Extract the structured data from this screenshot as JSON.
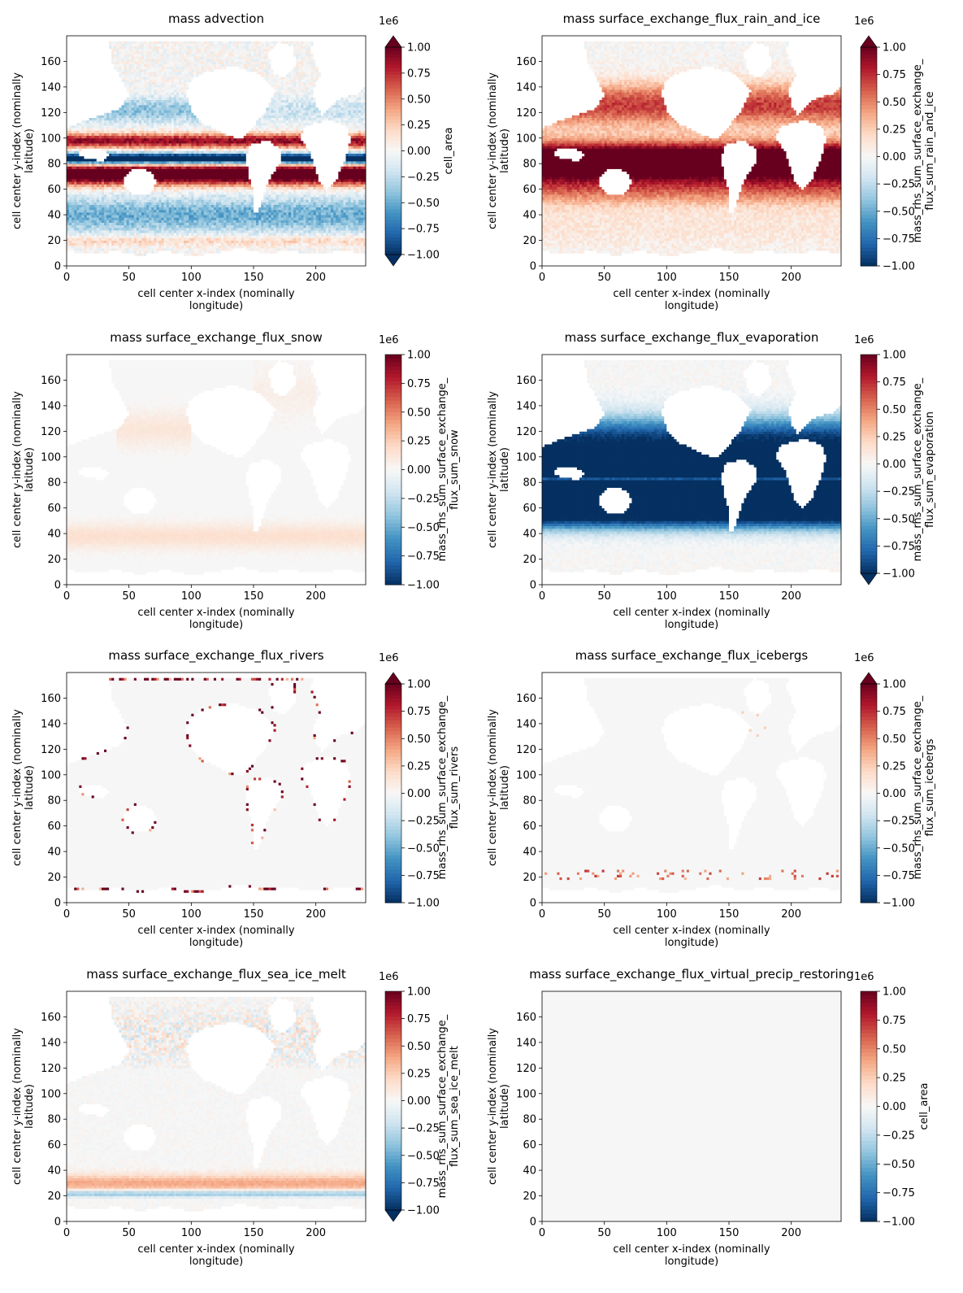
{
  "figure": {
    "xlabel": "cell center x-index (nominally\nlongitude)",
    "ylabel": "cell center y-index (nominally\nlatitude)",
    "colorbar_multiplier": "1e6",
    "colormap": [
      "#053061",
      "#2166ac",
      "#4393c3",
      "#92c5de",
      "#d1e5f0",
      "#f7f7f7",
      "#fddbc7",
      "#f4a582",
      "#d6604d",
      "#b2182b",
      "#67001f"
    ],
    "land_color": "#ffffff",
    "background_value_color": "#f6f6f6"
  },
  "chart_data": [
    {
      "type": "heatmap",
      "title": "mass advection",
      "xlabel": "cell center x-index (nominally\nlongitude)",
      "ylabel": "cell center y-index (nominally\nlatitude)",
      "xlim": [
        0,
        240
      ],
      "ylim": [
        0,
        180
      ],
      "xticks": [
        0,
        50,
        100,
        150,
        200
      ],
      "yticks": [
        0,
        20,
        40,
        60,
        80,
        100,
        120,
        140,
        160
      ],
      "colorbar": {
        "label": "cell_area",
        "vmin": -1.0,
        "vmax": 1.0,
        "ticks": [
          1.0,
          0.75,
          0.5,
          0.25,
          0.0,
          -0.25,
          -0.5,
          -0.75,
          -1.0
        ],
        "tick_labels": [
          "1.00",
          "0.75",
          "0.50",
          "0.25",
          "0.00",
          "−0.25",
          "−0.50",
          "−0.75",
          "−1.00"
        ],
        "extend": "both"
      },
      "pattern": "advection"
    },
    {
      "type": "heatmap",
      "title": "mass surface_exchange_flux_rain_and_ice",
      "xlabel": "cell center x-index (nominally\nlongitude)",
      "ylabel": "cell center y-index (nominally\nlatitude)",
      "xlim": [
        0,
        240
      ],
      "ylim": [
        0,
        180
      ],
      "xticks": [
        0,
        50,
        100,
        150,
        200
      ],
      "yticks": [
        0,
        20,
        40,
        60,
        80,
        100,
        120,
        140,
        160
      ],
      "colorbar": {
        "label": "mass_rhs_sum_surface_exchange_\nflux_sum_rain_and_ice",
        "vmin": -1.0,
        "vmax": 1.0,
        "ticks": [
          1.0,
          0.75,
          0.5,
          0.25,
          0.0,
          -0.25,
          -0.5,
          -0.75,
          -1.0
        ],
        "tick_labels": [
          "1.00",
          "0.75",
          "0.50",
          "0.25",
          "0.00",
          "−0.25",
          "−0.50",
          "−0.75",
          "−1.00"
        ],
        "extend": "max"
      },
      "pattern": "rain"
    },
    {
      "type": "heatmap",
      "title": "mass surface_exchange_flux_snow",
      "xlabel": "cell center x-index (nominally\nlongitude)",
      "ylabel": "cell center y-index (nominally\nlatitude)",
      "xlim": [
        0,
        240
      ],
      "ylim": [
        0,
        180
      ],
      "xticks": [
        0,
        50,
        100,
        150,
        200
      ],
      "yticks": [
        0,
        20,
        40,
        60,
        80,
        100,
        120,
        140,
        160
      ],
      "colorbar": {
        "label": "mass_rhs_sum_surface_exchange_\nflux_sum_snow",
        "vmin": -1.0,
        "vmax": 1.0,
        "ticks": [
          1.0,
          0.75,
          0.5,
          0.25,
          0.0,
          -0.25,
          -0.5,
          -0.75,
          -1.0
        ],
        "tick_labels": [
          "1.00",
          "0.75",
          "0.50",
          "0.25",
          "0.00",
          "−0.25",
          "−0.50",
          "−0.75",
          "−1.00"
        ],
        "extend": "neither"
      },
      "pattern": "snow"
    },
    {
      "type": "heatmap",
      "title": "mass surface_exchange_flux_evaporation",
      "xlabel": "cell center x-index (nominally\nlongitude)",
      "ylabel": "cell center y-index (nominally\nlatitude)",
      "xlim": [
        0,
        240
      ],
      "ylim": [
        0,
        180
      ],
      "xticks": [
        0,
        50,
        100,
        150,
        200
      ],
      "yticks": [
        0,
        20,
        40,
        60,
        80,
        100,
        120,
        140,
        160
      ],
      "colorbar": {
        "label": "mass_rhs_sum_surface_exchange_\nflux_sum_evaporation",
        "vmin": -1.0,
        "vmax": 1.0,
        "ticks": [
          1.0,
          0.75,
          0.5,
          0.25,
          0.0,
          -0.25,
          -0.5,
          -0.75,
          -1.0
        ],
        "tick_labels": [
          "1.00",
          "0.75",
          "0.50",
          "0.25",
          "0.00",
          "−0.25",
          "−0.50",
          "−0.75",
          "−1.00"
        ],
        "extend": "min"
      },
      "pattern": "evaporation"
    },
    {
      "type": "heatmap",
      "title": "mass surface_exchange_flux_rivers",
      "xlabel": "cell center x-index (nominally\nlongitude)",
      "ylabel": "cell center y-index (nominally\nlatitude)",
      "xlim": [
        0,
        240
      ],
      "ylim": [
        0,
        180
      ],
      "xticks": [
        0,
        50,
        100,
        150,
        200
      ],
      "yticks": [
        0,
        20,
        40,
        60,
        80,
        100,
        120,
        140,
        160
      ],
      "colorbar": {
        "label": "mass_rhs_sum_surface_exchange_\nflux_sum_rivers",
        "vmin": -1.0,
        "vmax": 1.0,
        "ticks": [
          1.0,
          0.75,
          0.5,
          0.25,
          0.0,
          -0.25,
          -0.5,
          -0.75,
          -1.0
        ],
        "tick_labels": [
          "1.00",
          "0.75",
          "0.50",
          "0.25",
          "0.00",
          "−0.25",
          "−0.50",
          "−0.75",
          "−1.00"
        ],
        "extend": "max"
      },
      "pattern": "rivers"
    },
    {
      "type": "heatmap",
      "title": "mass surface_exchange_flux_icebergs",
      "xlabel": "cell center x-index (nominally\nlongitude)",
      "ylabel": "cell center y-index (nominally\nlatitude)",
      "xlim": [
        0,
        240
      ],
      "ylim": [
        0,
        180
      ],
      "xticks": [
        0,
        50,
        100,
        150,
        200
      ],
      "yticks": [
        0,
        20,
        40,
        60,
        80,
        100,
        120,
        140,
        160
      ],
      "colorbar": {
        "label": "mass_rhs_sum_surface_exchange_\nflux_sum_icebergs",
        "vmin": -1.0,
        "vmax": 1.0,
        "ticks": [
          1.0,
          0.75,
          0.5,
          0.25,
          0.0,
          -0.25,
          -0.5,
          -0.75,
          -1.0
        ],
        "tick_labels": [
          "1.00",
          "0.75",
          "0.50",
          "0.25",
          "0.00",
          "−0.25",
          "−0.50",
          "−0.75",
          "−1.00"
        ],
        "extend": "max"
      },
      "pattern": "icebergs"
    },
    {
      "type": "heatmap",
      "title": "mass surface_exchange_flux_sea_ice_melt",
      "xlabel": "cell center x-index (nominally\nlongitude)",
      "ylabel": "cell center y-index (nominally\nlatitude)",
      "xlim": [
        0,
        240
      ],
      "ylim": [
        0,
        180
      ],
      "xticks": [
        0,
        50,
        100,
        150,
        200
      ],
      "yticks": [
        0,
        20,
        40,
        60,
        80,
        100,
        120,
        140,
        160
      ],
      "colorbar": {
        "label": "mass_rhs_sum_surface_exchange_\nflux_sum_sea_ice_melt",
        "vmin": -1.0,
        "vmax": 1.0,
        "ticks": [
          1.0,
          0.75,
          0.5,
          0.25,
          0.0,
          -0.25,
          -0.5,
          -0.75,
          -1.0
        ],
        "tick_labels": [
          "1.00",
          "0.75",
          "0.50",
          "0.25",
          "0.00",
          "−0.25",
          "−0.50",
          "−0.75",
          "−1.00"
        ],
        "extend": "min"
      },
      "pattern": "seaice"
    },
    {
      "type": "heatmap",
      "title": "mass surface_exchange_flux_virtual_precip_restoring",
      "xlabel": "cell center x-index (nominally\nlongitude)",
      "ylabel": "cell center y-index (nominally\nlatitude)",
      "xlim": [
        0,
        240
      ],
      "ylim": [
        0,
        180
      ],
      "xticks": [
        0,
        50,
        100,
        150,
        200
      ],
      "yticks": [
        0,
        20,
        40,
        60,
        80,
        100,
        120,
        140,
        160
      ],
      "colorbar": {
        "label": "cell_area",
        "vmin": -1.0,
        "vmax": 1.0,
        "ticks": [
          1.0,
          0.75,
          0.5,
          0.25,
          0.0,
          -0.25,
          -0.5,
          -0.75,
          -1.0
        ],
        "tick_labels": [
          "1.00",
          "0.75",
          "0.50",
          "0.25",
          "0.00",
          "−0.25",
          "−0.50",
          "−0.75",
          "−1.00"
        ],
        "extend": "neither"
      },
      "pattern": "zero"
    }
  ]
}
